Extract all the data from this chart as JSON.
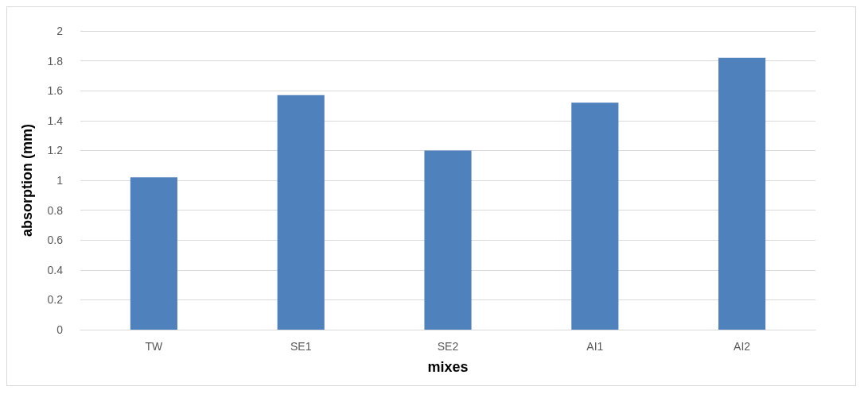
{
  "chart_data": {
    "type": "bar",
    "xlabel": "mixes",
    "ylabel": "absorption (mm)",
    "categories": [
      "TW",
      "SE1",
      "SE2",
      "AI1",
      "AI2"
    ],
    "values": [
      1.02,
      1.57,
      1.2,
      1.52,
      1.82
    ],
    "color": "#4f81bd",
    "ylim": [
      0,
      2
    ],
    "yticks": [
      0,
      0.2,
      0.4,
      0.6,
      0.8,
      1,
      1.2,
      1.4,
      1.6,
      1.8,
      2
    ],
    "grid": "y"
  }
}
